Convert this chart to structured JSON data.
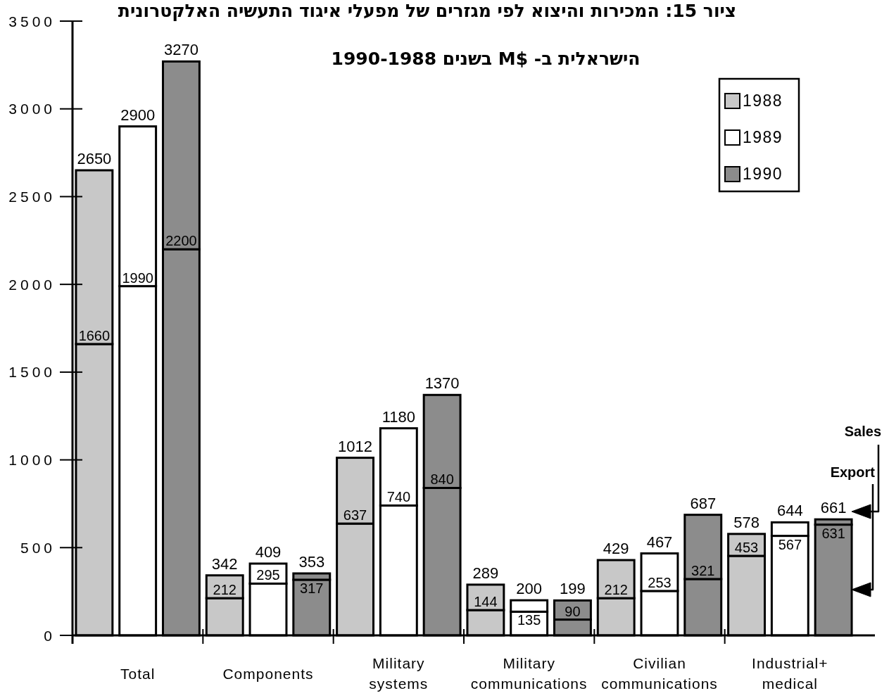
{
  "chart_data": {
    "type": "bar",
    "stacked": true,
    "title": "ציור 15: המכירות והיצוא לפי מגזרים של מפעלי איגוד התעשיה האלקטרונית\nהישראלית ב- M$ בשנים 1990-1988",
    "categories": [
      null,
      "Total",
      null,
      null,
      "Components",
      null,
      null,
      "Military\nsystems",
      null,
      null,
      "Military\ncommunications",
      null,
      null,
      "Civilian\ncommunications",
      null,
      null,
      "Industrial+\nmedical",
      null
    ],
    "series": [
      {
        "name": "1988",
        "color": "#c8c8c8",
        "values": [
          1660,
          null,
          null,
          212,
          null,
          null,
          637,
          null,
          null,
          144,
          null,
          null,
          212,
          null,
          null,
          453,
          null,
          null
        ],
        "value_labels": [
          "1660",
          null,
          null,
          "212",
          null,
          null,
          "637",
          null,
          null,
          "144",
          null,
          null,
          "212",
          null,
          null,
          "453",
          null,
          null
        ]
      },
      {
        "color": "#c8c8c8",
        "values": [
          990,
          null,
          null,
          130,
          null,
          null,
          375,
          null,
          null,
          145,
          null,
          null,
          217,
          null,
          null,
          125,
          null,
          null
        ]
      },
      {
        "name": "1989",
        "color": "#ffffff",
        "values": [
          null,
          1990,
          null,
          null,
          295,
          null,
          null,
          740,
          null,
          null,
          135,
          null,
          null,
          253,
          null,
          null,
          567,
          null
        ],
        "value_labels": [
          null,
          "1990",
          null,
          null,
          "295",
          null,
          null,
          "740",
          null,
          null,
          "135",
          null,
          null,
          "253",
          null,
          null,
          "567",
          null
        ]
      },
      {
        "color": "#ffffff",
        "values": [
          null,
          910,
          null,
          null,
          114,
          null,
          null,
          440,
          null,
          null,
          65,
          null,
          null,
          214,
          null,
          null,
          77,
          null
        ]
      },
      {
        "name": "1990",
        "color": "#8c8c8c",
        "values": [
          null,
          null,
          2200,
          null,
          null,
          317,
          null,
          null,
          840,
          null,
          null,
          90,
          null,
          null,
          321,
          null,
          null,
          631
        ],
        "value_labels": [
          null,
          null,
          "2200",
          null,
          null,
          "317",
          null,
          null,
          "840",
          null,
          null,
          "90",
          null,
          null,
          "321",
          null,
          null,
          "631"
        ]
      },
      {
        "color": "#8c8c8c",
        "values": [
          null,
          null,
          1070,
          null,
          null,
          36,
          null,
          null,
          530,
          null,
          null,
          109,
          null,
          null,
          366,
          null,
          null,
          30
        ]
      }
    ],
    "totals": [
      "2650",
      "2900",
      "3270",
      "342",
      "409",
      "353",
      "1012",
      "1180",
      "1370",
      "289",
      "200",
      "199",
      "429",
      "467",
      "687",
      "578",
      "644",
      "661"
    ],
    "ylim": [
      0,
      3500
    ],
    "yticks": [
      0,
      500,
      1000,
      1500,
      2000,
      2500,
      3000,
      3500
    ],
    "legend": "top right",
    "annotations": [
      "Sales",
      "Export"
    ]
  }
}
